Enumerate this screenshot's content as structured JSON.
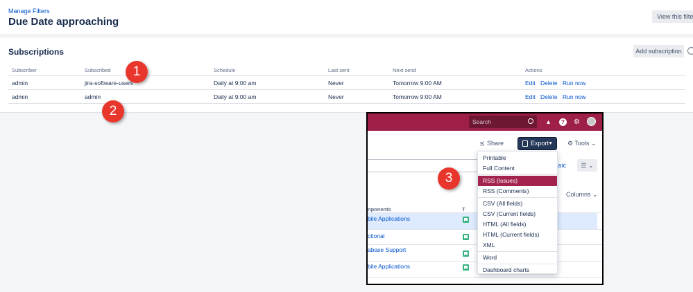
{
  "header": {
    "breadcrumb": "Manage Filters",
    "title": "Due Date approaching",
    "view_button": "View this filter"
  },
  "subscriptions": {
    "title": "Subscriptions",
    "add_button": "Add subscription",
    "columns": [
      "Subscriber",
      "Subscribed",
      "Schedule",
      "Last sent",
      "Next send",
      "Actions"
    ],
    "rows": [
      {
        "subscriber": "admin",
        "subscribed": "jira-software-users",
        "schedule": "Daily at 9:00 am",
        "last_sent": "Never",
        "next_send": "Tomorrow 9:00 AM",
        "actions": [
          "Edit",
          "Delete",
          "Run now"
        ]
      },
      {
        "subscriber": "admin",
        "subscribed": "admin",
        "schedule": "Daily at 9:00 am",
        "last_sent": "Never",
        "next_send": "Tomorrow 9:00 AM",
        "actions": [
          "Edit",
          "Delete",
          "Run now"
        ]
      }
    ]
  },
  "markers": [
    "1",
    "2",
    "3"
  ],
  "inset": {
    "search_placeholder": "Search",
    "share": "Share",
    "export": "Export",
    "tools": "Tools",
    "basic_link": "asic",
    "columns_button": "Columns",
    "table_header_components": "nponents",
    "table_header_type": "T",
    "components": [
      "bile Applications",
      "ctional",
      "abase Support",
      "bile Applications"
    ],
    "export_menu": [
      "Printable",
      "Full Content",
      "RSS (Issues)",
      "RSS (Comments)",
      "CSV (All fields)",
      "CSV (Current fields)",
      "HTML (All fields)",
      "HTML (Current fields)",
      "XML",
      "Word",
      "Dashboard charts"
    ],
    "export_menu_active": "RSS (Issues)",
    "colors": {
      "topbar": "#9e2048",
      "active_item": "#a3234f",
      "export_button": "#253858",
      "issue_type": "#36b37e"
    }
  },
  "icons": [
    "search-icon",
    "megaphone-icon",
    "help-icon",
    "gear-icon",
    "avatar",
    "share-icon",
    "export-icon",
    "chevron-down-icon",
    "list-icon",
    "story-icon"
  ]
}
